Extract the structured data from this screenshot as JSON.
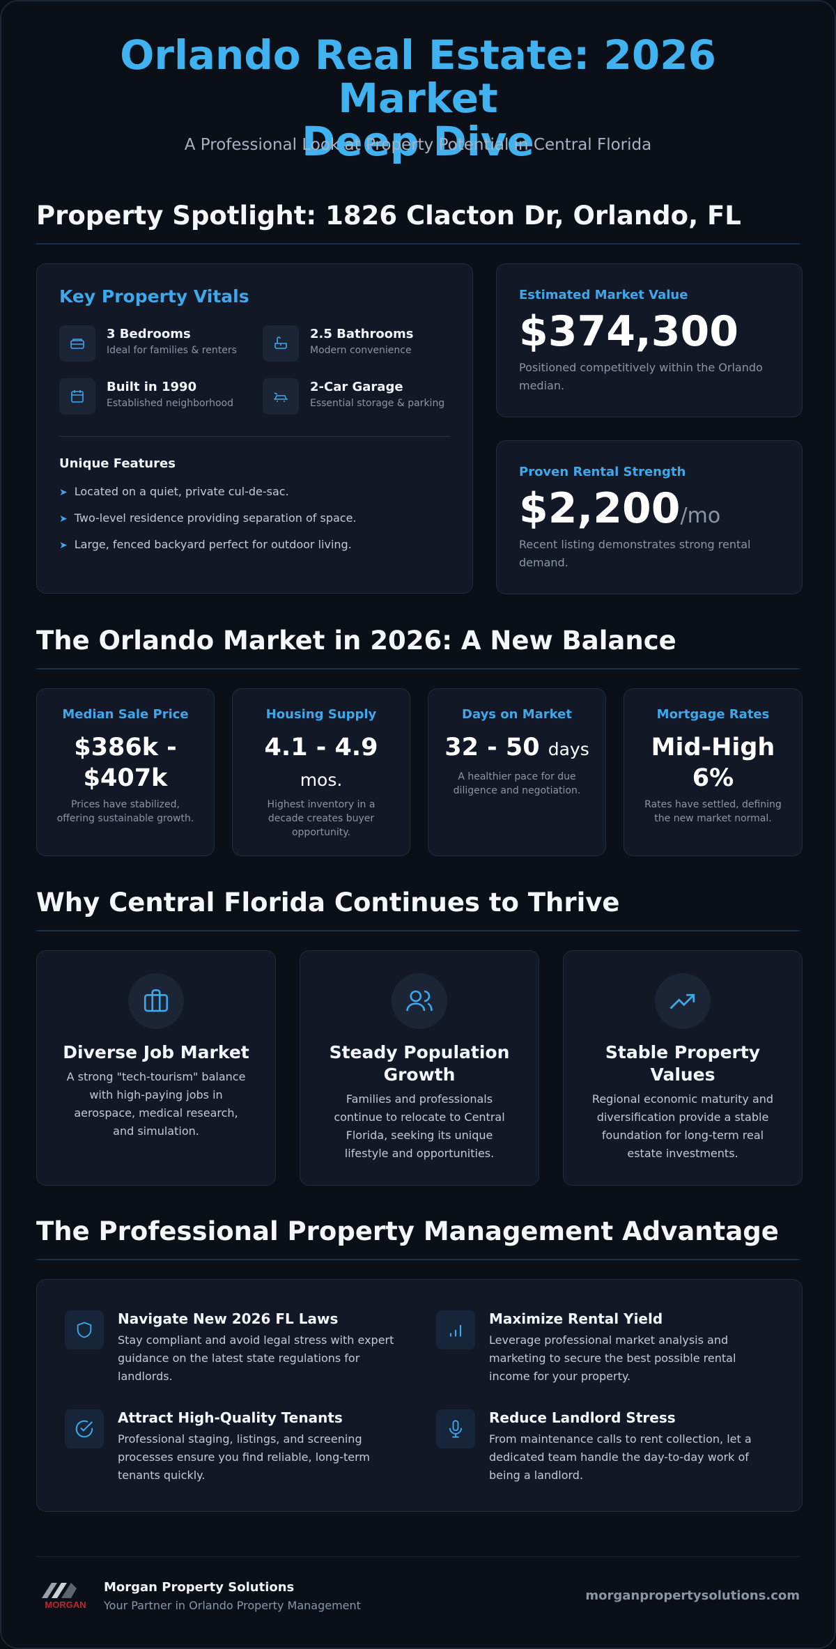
{
  "header": {
    "title_line1": "Orlando Real Estate: 2026 Market",
    "title_line2": "Deep Dive",
    "subtitle": "A Professional Look at Property Potential in Central Florida"
  },
  "spotlight": {
    "section_title": "Property Spotlight: 1826 Clacton Dr, Orlando, FL",
    "vitals": {
      "title": "Key Property Vitals",
      "items": [
        {
          "title": "3 Bedrooms",
          "sub": "Ideal for families & renters",
          "icon": "bed-icon"
        },
        {
          "title": "2.5 Bathrooms",
          "sub": "Modern convenience",
          "icon": "bath-icon"
        },
        {
          "title": "Built in 1990",
          "sub": "Established neighborhood",
          "icon": "calendar-icon"
        },
        {
          "title": "2-Car Garage",
          "sub": "Essential storage & parking",
          "icon": "car-icon"
        }
      ],
      "features_title": "Unique Features",
      "features": [
        "Located on a quiet, private cul-de-sac.",
        "Two-level residence providing separation of space.",
        "Large, fenced backyard perfect for outdoor living."
      ]
    },
    "market_value": {
      "label": "Estimated Market Value",
      "value": "$374,300",
      "desc": "Positioned competitively within the Orlando median."
    },
    "rental": {
      "label": "Proven Rental Strength",
      "value": "$2,200",
      "unit": "/mo",
      "desc": "Recent listing demonstrates strong rental demand."
    }
  },
  "market": {
    "section_title": "The Orlando Market in 2026: A New Balance",
    "cards": [
      {
        "label": "Median Sale Price",
        "value": "$386k - $407k",
        "unit": "",
        "desc": "Prices have stabilized, offering sustainable growth."
      },
      {
        "label": "Housing Supply",
        "value": "4.1 - 4.9",
        "unit": "mos.",
        "desc": "Highest inventory in a decade creates buyer opportunity."
      },
      {
        "label": "Days on Market",
        "value": "32 - 50",
        "unit": "days",
        "desc": "A healthier pace for due diligence and negotiation."
      },
      {
        "label": "Mortgage Rates",
        "value": "Mid-High 6%",
        "unit": "",
        "desc": "Rates have settled, defining the new market normal."
      }
    ]
  },
  "thrive": {
    "section_title": "Why Central Florida Continues to Thrive",
    "cards": [
      {
        "title": "Diverse Job Market",
        "desc": "A strong \"tech-tourism\" balance with high-paying jobs in aerospace, medical research, and simulation.",
        "icon": "briefcase-icon"
      },
      {
        "title": "Steady Population Growth",
        "desc": "Families and professionals continue to relocate to Central Florida, seeking its unique lifestyle and opportunities.",
        "icon": "users-icon"
      },
      {
        "title": "Stable Property Values",
        "desc": "Regional economic maturity and diversification provide a stable foundation for long-term real estate investments.",
        "icon": "trending-up-icon"
      }
    ]
  },
  "management": {
    "section_title": "The Professional Property Management Advantage",
    "items": [
      {
        "title": "Navigate New 2026 FL Laws",
        "desc": "Stay compliant and avoid legal stress with expert guidance on the latest state regulations for landlords.",
        "icon": "shield-icon"
      },
      {
        "title": "Maximize Rental Yield",
        "desc": "Leverage professional market analysis and marketing to secure the best possible rental income for your property.",
        "icon": "bar-chart-icon"
      },
      {
        "title": "Attract High-Quality Tenants",
        "desc": "Professional staging, listings, and screening processes ensure you find reliable, long-term tenants quickly.",
        "icon": "check-circle-icon"
      },
      {
        "title": "Reduce Landlord Stress",
        "desc": "From maintenance calls to rent collection, let a dedicated team handle the day-to-day work of being a landlord.",
        "icon": "microphone-icon"
      }
    ]
  },
  "footer": {
    "logo_text": "MORGAN",
    "brand_name": "Morgan Property Solutions",
    "tagline": "Your Partner in Orlando Property Management",
    "website": "morganpropertysolutions.com"
  },
  "colors": {
    "accent": "#3fa8eb",
    "background": "#0b0f17",
    "card": "#121826",
    "logo_red": "#c0262d"
  }
}
